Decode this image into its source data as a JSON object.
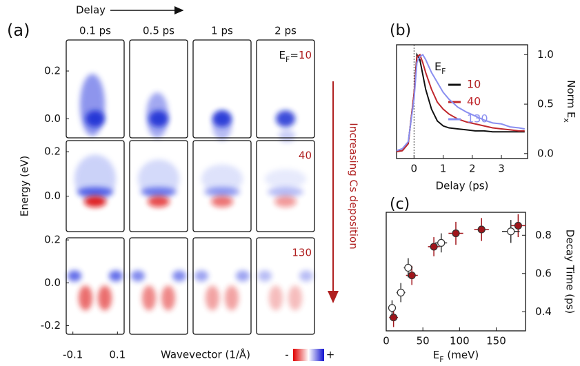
{
  "panel_a": {
    "label": "(a)",
    "delay_label": "Delay",
    "columns": [
      "0.1 ps",
      "0.5 ps",
      "1 ps",
      "2 ps"
    ],
    "ef_name": "E",
    "ef_sub": "F",
    "ef_eq": "=",
    "rows": [
      {
        "ef": "10",
        "ylim": [
          -0.08,
          0.33
        ],
        "yticks": [
          {
            "value": 0.2,
            "label": "0.2"
          },
          {
            "value": 0,
            "label": "0.0"
          }
        ]
      },
      {
        "ef": "40",
        "ylim": [
          -0.16,
          0.25
        ],
        "yticks": [
          {
            "value": 0.2,
            "label": "0.2"
          },
          {
            "value": 0,
            "label": "0.0"
          }
        ]
      },
      {
        "ef": "130",
        "ylim": [
          -0.24,
          0.21
        ],
        "yticks": [
          {
            "value": 0.2,
            "label": "0.2"
          },
          {
            "value": 0,
            "label": "0.0"
          },
          {
            "value": -0.2,
            "label": "-0.2"
          }
        ]
      }
    ],
    "xlim": [
      -0.13,
      0.13
    ],
    "xticks": [
      -0.1,
      0.1
    ],
    "y_label": "Energy (eV)",
    "x_label": "Wavevector (1/Å)",
    "colorbar_minus": "-",
    "colorbar_plus": "+",
    "side_label": "Increasing Cs deposition"
  },
  "chart_data": [
    {
      "type": "line",
      "label": "(b)",
      "x_label": "Delay (ps)",
      "y_label": "Norm E",
      "y_label_sub": "x",
      "legend_name": "E",
      "legend_sub": "F",
      "x": [
        -0.6,
        -0.4,
        -0.2,
        0,
        0.1,
        0.2,
        0.3,
        0.4,
        0.6,
        0.8,
        1.0,
        1.2,
        1.5,
        1.8,
        2.1,
        2.4,
        2.7,
        3.0,
        3.3,
        3.6,
        3.8
      ],
      "series": [
        {
          "name": "10",
          "color": "#111111",
          "values": [
            0.02,
            0.03,
            0.1,
            0.6,
            1.0,
            0.95,
            0.8,
            0.65,
            0.45,
            0.33,
            0.28,
            0.26,
            0.25,
            0.24,
            0.23,
            0.23,
            0.22,
            0.22,
            0.22,
            0.22,
            0.22
          ]
        },
        {
          "name": "40",
          "color": "#c0282d",
          "values": [
            0.02,
            0.03,
            0.1,
            0.6,
            0.98,
            1.0,
            0.92,
            0.82,
            0.65,
            0.52,
            0.45,
            0.4,
            0.35,
            0.32,
            0.3,
            0.28,
            0.26,
            0.25,
            0.24,
            0.23,
            0.23
          ]
        },
        {
          "name": "130",
          "color": "#8a8ff0",
          "values": [
            0.03,
            0.05,
            0.12,
            0.55,
            0.92,
            0.98,
            1.0,
            0.95,
            0.82,
            0.72,
            0.62,
            0.55,
            0.47,
            0.42,
            0.38,
            0.34,
            0.31,
            0.3,
            0.27,
            0.26,
            0.25
          ]
        }
      ],
      "xlim": [
        -0.6,
        3.9
      ],
      "xticks": [
        0,
        1,
        2,
        3
      ],
      "ylim": [
        -0.05,
        1.1
      ],
      "yticks": [
        {
          "value": 0,
          "label": "0.0"
        },
        {
          "value": 0.5,
          "label": "0.5"
        },
        {
          "value": 1,
          "label": "1.0"
        }
      ]
    },
    {
      "type": "scatter",
      "label": "(c)",
      "x_label": "E",
      "x_label_sub": "F",
      "x_label_rest": " (meV)",
      "y_label": "Decay Time (ps)",
      "series": [
        {
          "color": "#a0151b",
          "filled": true,
          "x": [
            10,
            35,
            65,
            95,
            130,
            180
          ],
          "values": [
            0.37,
            0.59,
            0.74,
            0.81,
            0.83,
            0.85
          ],
          "xerr": [
            6,
            8,
            8,
            10,
            10,
            10
          ],
          "yerr": [
            0.05,
            0.05,
            0.05,
            0.06,
            0.06,
            0.06
          ]
        },
        {
          "color": "#333333",
          "filled": false,
          "x": [
            8,
            20,
            30,
            75,
            170
          ],
          "values": [
            0.42,
            0.5,
            0.63,
            0.76,
            0.82
          ],
          "xerr": [
            5,
            6,
            6,
            8,
            12
          ],
          "yerr": [
            0.04,
            0.05,
            0.05,
            0.05,
            0.06
          ]
        }
      ],
      "xlim": [
        0,
        190
      ],
      "xticks": [
        0,
        50,
        100,
        150
      ],
      "ylim": [
        0.3,
        0.92
      ],
      "yticks": [
        {
          "value": 0.4,
          "label": "0.4"
        },
        {
          "value": 0.6,
          "label": "0.6"
        },
        {
          "value": 0.8,
          "label": "0.8"
        }
      ]
    }
  ]
}
